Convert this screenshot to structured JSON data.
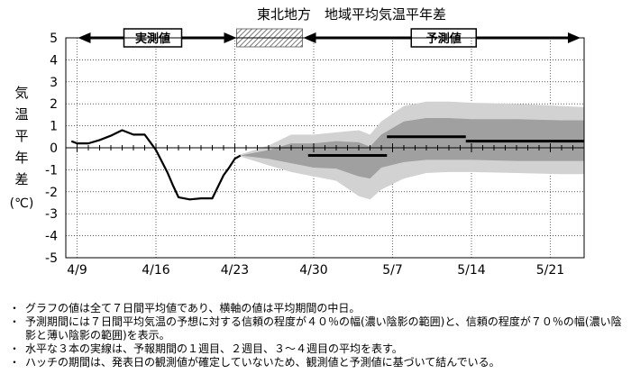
{
  "chart_data": {
    "type": "line",
    "title": "東北地方　地域平均気温平年差",
    "ylabel": "気温平年差(℃)",
    "ylim": [
      -5,
      5
    ],
    "yticks": [
      5,
      4,
      3,
      2,
      1,
      0,
      -1,
      -2,
      -3,
      -4,
      -5
    ],
    "x_tick_labels": [
      "4/9",
      "4/16",
      "4/23",
      "4/30",
      "5/7",
      "5/14",
      "5/21"
    ],
    "x_tick_days": [
      9,
      16,
      23,
      30,
      37,
      44,
      51
    ],
    "x_range_days": [
      8,
      54
    ],
    "grid": true,
    "observed_label": "実測値",
    "forecast_label": "予測値",
    "observed_period_days": [
      9,
      23
    ],
    "hatch_period_days": [
      23,
      29
    ],
    "forecast_period_days": [
      29,
      54
    ],
    "observed": {
      "x": [
        8.5,
        9,
        10,
        11,
        12,
        13,
        14,
        15,
        16,
        17,
        17.5,
        18,
        19,
        20,
        21,
        22,
        22.5,
        23,
        23.5
      ],
      "y": [
        0.3,
        0.2,
        0.2,
        0.35,
        0.55,
        0.8,
        0.6,
        0.6,
        -0.1,
        -1.1,
        -1.7,
        -2.25,
        -2.35,
        -2.3,
        -2.3,
        -1.25,
        -0.9,
        -0.5,
        -0.35
      ]
    },
    "band_x": [
      23.5,
      26,
      28,
      30,
      32,
      34,
      35,
      36,
      38,
      40,
      42,
      44,
      48,
      52,
      54
    ],
    "band_70_upper": [
      -0.3,
      0.1,
      0.6,
      0.6,
      0.7,
      0.8,
      0.6,
      1.2,
      1.9,
      2.1,
      2.1,
      2.05,
      2.0,
      1.9,
      1.85
    ],
    "band_70_lower": [
      -0.4,
      -0.8,
      -1.1,
      -1.3,
      -1.5,
      -2.2,
      -2.35,
      -1.9,
      -1.4,
      -1.15,
      -1.1,
      -1.1,
      -1.15,
      -1.2,
      -1.2
    ],
    "band_40_upper": [
      -0.35,
      -0.1,
      0.2,
      0.2,
      0.3,
      0.25,
      0.05,
      0.6,
      1.2,
      1.35,
      1.35,
      1.3,
      1.3,
      1.25,
      1.25
    ],
    "band_40_lower": [
      -0.35,
      -0.5,
      -0.7,
      -0.9,
      -0.95,
      -1.3,
      -1.4,
      -0.9,
      -0.65,
      -0.55,
      -0.55,
      -0.55,
      -0.6,
      -0.6,
      -0.6
    ],
    "weekly_means": [
      {
        "x": [
          29.5,
          36.5
        ],
        "y": -0.35
      },
      {
        "x": [
          36.5,
          43.5
        ],
        "y": 0.5
      },
      {
        "x": [
          43.5,
          54
        ],
        "y": 0.3
      }
    ],
    "colors": {
      "observed": "#000000",
      "band_70": "#d2d2d2",
      "band_40": "#a0a0a0",
      "weekly": "#000000",
      "grid": "#000000"
    }
  },
  "notes": [
    {
      "bullet": "・",
      "text": "グラフの値は全て７日間平均値であり、横軸の値は平均期間の中日。"
    },
    {
      "bullet": "・",
      "text": "予測期間には７日間平均気温の予想に対する信頼の程度が４０％の幅(濃い陰影の範囲)と、信頼の程度が７０％の幅(濃い陰影と薄い陰影の範囲)を表示。"
    },
    {
      "bullet": "・",
      "text": "水平な３本の実線は、予報期間の１週目、２週目、３～４週目の平均を表す。"
    },
    {
      "bullet": "・",
      "text": "ハッチの期間は、発表日の観測値が確定していないため、観測値と予測値に基づいて結んでいる。"
    }
  ]
}
